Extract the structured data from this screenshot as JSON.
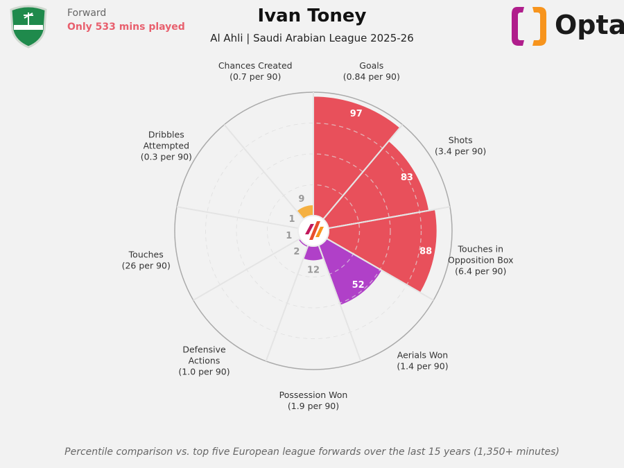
{
  "header": {
    "title": "Ivan Toney",
    "subtitle": "Al Ahli | Saudi Arabian League 2025-26",
    "position": "Forward",
    "minutes_note": "Only 533 mins played",
    "brand": "Opta"
  },
  "footnote": "Percentile comparison vs. top five European league forwards over the last 15 years (1,350+ minutes)",
  "colors": {
    "attack": "#e8505b",
    "defence": "#b040c8",
    "possession": "#f5b041",
    "grid": "#dddddd",
    "background": "#f2f2f2"
  },
  "chart_data": {
    "type": "polar-bar",
    "rlim": [
      0,
      100
    ],
    "grid_levels": [
      25,
      50,
      75
    ],
    "categories": [
      {
        "label": [
          "Goals",
          "(0.84 per 90)"
        ],
        "value": 97,
        "group": "attack"
      },
      {
        "label": [
          "Shots",
          "(3.4 per 90)"
        ],
        "value": 83,
        "group": "attack"
      },
      {
        "label": [
          "Touches in",
          "Opposition Box",
          "(6.4 per 90)"
        ],
        "value": 88,
        "group": "attack"
      },
      {
        "label": [
          "Aerials Won",
          "(1.4 per 90)"
        ],
        "value": 52,
        "group": "defence"
      },
      {
        "label": [
          "Possession Won",
          "(1.9 per 90)"
        ],
        "value": 12,
        "group": "defence"
      },
      {
        "label": [
          "Defensive",
          "Actions",
          "(1.0 per 90)"
        ],
        "value": 2,
        "group": "defence"
      },
      {
        "label": [
          "Touches",
          "(26 per 90)"
        ],
        "value": 1,
        "group": "possession"
      },
      {
        "label": [
          "Dribbles",
          "Attempted",
          "(0.3 per 90)"
        ],
        "value": 1,
        "group": "possession"
      },
      {
        "label": [
          "Chances Created",
          "(0.7 per 90)"
        ],
        "value": 9,
        "group": "possession"
      }
    ]
  }
}
